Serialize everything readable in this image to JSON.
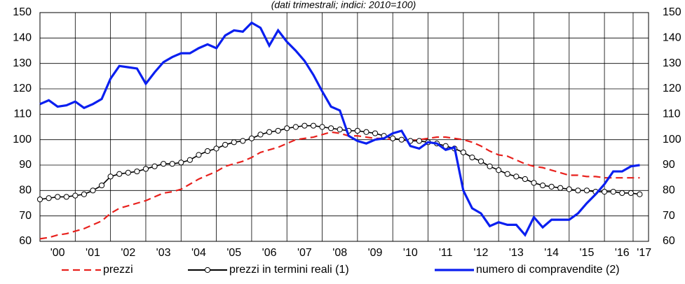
{
  "chart_data": {
    "type": "line",
    "title": "(dati trimestrali; indici: 2010=100)",
    "x": [
      2000,
      2000.25,
      2000.5,
      2000.75,
      2001,
      2001.25,
      2001.5,
      2001.75,
      2002,
      2002.25,
      2002.5,
      2002.75,
      2003,
      2003.25,
      2003.5,
      2003.75,
      2004,
      2004.25,
      2004.5,
      2004.75,
      2005,
      2005.25,
      2005.5,
      2005.75,
      2006,
      2006.25,
      2006.5,
      2006.75,
      2007,
      2007.25,
      2007.5,
      2007.75,
      2008,
      2008.25,
      2008.5,
      2008.75,
      2009,
      2009.25,
      2009.5,
      2009.75,
      2010,
      2010.25,
      2010.5,
      2010.75,
      2011,
      2011.25,
      2011.5,
      2011.75,
      2012,
      2012.25,
      2012.5,
      2012.75,
      2013,
      2013.25,
      2013.5,
      2013.75,
      2014,
      2014.25,
      2014.5,
      2014.75,
      2015,
      2015.25,
      2015.5,
      2015.75,
      2016,
      2016.25,
      2016.5,
      2016.75,
      2017
    ],
    "xlim": [
      2000,
      2017.25
    ],
    "xticks": [
      {
        "value": 2000.5,
        "label": "'00"
      },
      {
        "value": 2001.5,
        "label": "'01"
      },
      {
        "value": 2002.5,
        "label": "'02"
      },
      {
        "value": 2003.5,
        "label": "'03"
      },
      {
        "value": 2004.5,
        "label": "'04"
      },
      {
        "value": 2005.5,
        "label": "'05"
      },
      {
        "value": 2006.5,
        "label": "'06"
      },
      {
        "value": 2007.5,
        "label": "'07"
      },
      {
        "value": 2008.5,
        "label": "'08"
      },
      {
        "value": 2009.5,
        "label": "'09"
      },
      {
        "value": 2010.5,
        "label": "'10"
      },
      {
        "value": 2011.5,
        "label": "'11"
      },
      {
        "value": 2012.5,
        "label": "'12"
      },
      {
        "value": 2013.5,
        "label": "'13"
      },
      {
        "value": 2014.5,
        "label": "'14"
      },
      {
        "value": 2015.5,
        "label": "'15"
      },
      {
        "value": 2016.5,
        "label": "'16"
      },
      {
        "value": 2017.125,
        "label": "'17"
      }
    ],
    "ylim": [
      60,
      150
    ],
    "yticks": [
      60,
      70,
      80,
      90,
      100,
      110,
      120,
      130,
      140,
      150
    ],
    "y2lim": [
      60,
      150
    ],
    "y2ticks": [
      60,
      70,
      80,
      90,
      100,
      110,
      120,
      130,
      140,
      150
    ],
    "grid": true,
    "legend": "bottom",
    "series": [
      {
        "name": "prezzi",
        "color": "#e8211d",
        "style": "dashed",
        "values": [
          61,
          61.5,
          62.5,
          63,
          64,
          65,
          66.5,
          68,
          71,
          73,
          74,
          75,
          76,
          77.5,
          79,
          79.5,
          80.5,
          82.5,
          84.5,
          86,
          87.5,
          89.5,
          90.5,
          91.5,
          93,
          95,
          96,
          97,
          98.5,
          100,
          100.5,
          101,
          102,
          103,
          102.5,
          101.5,
          101.5,
          101,
          100.5,
          100.5,
          100,
          100,
          99.5,
          100,
          100.5,
          101,
          101,
          100.5,
          100,
          99,
          97.5,
          95.5,
          94,
          93.5,
          92,
          90.5,
          89.5,
          89,
          88,
          87,
          86,
          86,
          85.5,
          85.5,
          85,
          85,
          85,
          85,
          85
        ]
      },
      {
        "name": "prezzi in termini reali (1)",
        "color": "#000000",
        "style": "markers",
        "values": [
          76.5,
          77,
          77.5,
          77.5,
          78,
          78.5,
          80,
          82,
          85.5,
          86.5,
          87,
          87.5,
          88.5,
          89.5,
          90.5,
          90.5,
          91,
          92,
          94,
          95.5,
          96.5,
          98,
          99,
          99.5,
          100.5,
          102,
          103,
          103.5,
          104.5,
          105,
          105.5,
          105.5,
          105,
          104.5,
          104,
          103.5,
          103.5,
          103,
          102.5,
          101.5,
          100.5,
          100,
          99.5,
          99.5,
          99,
          98.5,
          97.5,
          96.5,
          95,
          93,
          91.5,
          89.5,
          88,
          86.5,
          85.5,
          84.5,
          83,
          82,
          81.5,
          81,
          80.5,
          80,
          80,
          79.5,
          79.5,
          79.5,
          79,
          79,
          78.5
        ]
      },
      {
        "name": "numero di compravendite (2)",
        "color": "#0a1ff0",
        "style": "thick",
        "values": [
          114,
          115.5,
          113,
          113.5,
          115,
          112.5,
          114,
          116,
          124,
          129,
          128.5,
          128,
          122,
          126.5,
          130.5,
          132.5,
          134,
          134,
          136,
          137.5,
          136,
          141,
          143,
          142.5,
          146,
          144,
          137,
          143,
          138.5,
          135,
          131,
          125.5,
          119,
          113,
          111.5,
          101.5,
          99.5,
          98.5,
          100,
          100.5,
          102.5,
          103.5,
          97.5,
          96.5,
          99,
          98.5,
          96,
          97,
          80,
          73,
          71,
          66,
          67.5,
          66.5,
          66.5,
          62.5,
          69.5,
          65.5,
          68.5,
          68.5,
          68.5,
          71,
          75,
          78.5,
          82.5,
          87.5,
          87.5,
          89.5,
          90
        ]
      }
    ]
  }
}
